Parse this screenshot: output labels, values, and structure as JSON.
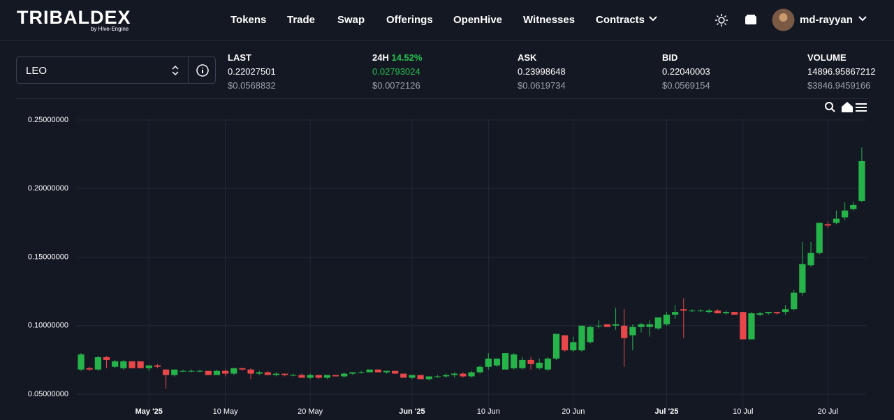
{
  "header": {
    "logo": "TRIBALDEX",
    "logo_sub": "by Hive-Engine",
    "nav": [
      "Tokens",
      "Trade",
      "Swap",
      "Offerings",
      "OpenHive",
      "Witnesses",
      "Contracts"
    ],
    "user": "md-rayyan"
  },
  "market": {
    "token": "LEO",
    "stats": [
      {
        "label": "LAST",
        "value": "0.22027501",
        "usd": "$0.0568832"
      },
      {
        "label": "24H",
        "change": "14.52%",
        "value": "0.02793024",
        "usd": "$0.0072126"
      },
      {
        "label": "ASK",
        "value": "0.23998648",
        "usd": "$0.0619734"
      },
      {
        "label": "BID",
        "value": "0.22040003",
        "usd": "$0.0569154"
      },
      {
        "label": "VOLUME",
        "value": "14896.95867212",
        "usd": "$3846.9459166"
      }
    ]
  },
  "chart_data": {
    "type": "candlestick",
    "up_color": "#26b34a",
    "down_color": "#e8474a",
    "grid": true,
    "categories": [
      "2025-04-23",
      "2025-04-24",
      "2025-04-25",
      "2025-04-26",
      "2025-04-27",
      "2025-04-28",
      "2025-04-29",
      "2025-04-30",
      "2025-05-01",
      "2025-05-02",
      "2025-05-03",
      "2025-05-04",
      "2025-05-05",
      "2025-05-06",
      "2025-05-07",
      "2025-05-08",
      "2025-05-09",
      "2025-05-10",
      "2025-05-11",
      "2025-05-12",
      "2025-05-13",
      "2025-05-14",
      "2025-05-15",
      "2025-05-16",
      "2025-05-17",
      "2025-05-18",
      "2025-05-19",
      "2025-05-20",
      "2025-05-21",
      "2025-05-22",
      "2025-05-23",
      "2025-05-24",
      "2025-05-25",
      "2025-05-26",
      "2025-05-27",
      "2025-05-28",
      "2025-05-29",
      "2025-05-30",
      "2025-05-31",
      "2025-06-01",
      "2025-06-02",
      "2025-06-03",
      "2025-06-04",
      "2025-06-05",
      "2025-06-06",
      "2025-06-07",
      "2025-06-08",
      "2025-06-09",
      "2025-06-10",
      "2025-06-11",
      "2025-06-12",
      "2025-06-13",
      "2025-06-14",
      "2025-06-15",
      "2025-06-16",
      "2025-06-17",
      "2025-06-18",
      "2025-06-19",
      "2025-06-20",
      "2025-06-21",
      "2025-06-22",
      "2025-06-23",
      "2025-06-24",
      "2025-06-25",
      "2025-06-26",
      "2025-06-27",
      "2025-06-28",
      "2025-06-29",
      "2025-06-30",
      "2025-07-01",
      "2025-07-02",
      "2025-07-03",
      "2025-07-04",
      "2025-07-05",
      "2025-07-06",
      "2025-07-07",
      "2025-07-08",
      "2025-07-09",
      "2025-07-10",
      "2025-07-11",
      "2025-07-12",
      "2025-07-13",
      "2025-07-14",
      "2025-07-15",
      "2025-07-16",
      "2025-07-17",
      "2025-07-18",
      "2025-07-19",
      "2025-07-20",
      "2025-07-21",
      "2025-07-22",
      "2025-07-23",
      "2025-07-24"
    ],
    "open": [
      0.068,
      0.069,
      0.068,
      0.077,
      0.07,
      0.069,
      0.074,
      0.074,
      0.069,
      0.071,
      0.068,
      0.064,
      0.067,
      0.067,
      0.067,
      0.067,
      0.064,
      0.067,
      0.065,
      0.069,
      0.068,
      0.065,
      0.066,
      0.064,
      0.065,
      0.064,
      0.064,
      0.062,
      0.064,
      0.062,
      0.064,
      0.063,
      0.065,
      0.066,
      0.066,
      0.068,
      0.066,
      0.067,
      0.065,
      0.062,
      0.064,
      0.061,
      0.063,
      0.063,
      0.064,
      0.065,
      0.063,
      0.066,
      0.07,
      0.071,
      0.068,
      0.069,
      0.069,
      0.075,
      0.069,
      0.068,
      0.076,
      0.093,
      0.082,
      0.082,
      0.088,
      0.1,
      0.101,
      0.1,
      0.1,
      0.093,
      0.099,
      0.099,
      0.098,
      0.101,
      0.108,
      0.112,
      0.111,
      0.111,
      0.11,
      0.111,
      0.109,
      0.11,
      0.11,
      0.09,
      0.108,
      0.109,
      0.11,
      0.11,
      0.112,
      0.124,
      0.144,
      0.153,
      0.174,
      0.175,
      0.179,
      0.185,
      0.191
    ],
    "high": [
      0.08,
      0.07,
      0.078,
      0.078,
      0.075,
      0.075,
      0.074,
      0.074,
      0.071,
      0.072,
      0.068,
      0.068,
      0.068,
      0.068,
      0.068,
      0.067,
      0.068,
      0.068,
      0.069,
      0.069,
      0.069,
      0.067,
      0.067,
      0.066,
      0.065,
      0.065,
      0.065,
      0.065,
      0.064,
      0.064,
      0.064,
      0.066,
      0.066,
      0.067,
      0.068,
      0.068,
      0.067,
      0.067,
      0.065,
      0.064,
      0.064,
      0.063,
      0.064,
      0.065,
      0.066,
      0.066,
      0.067,
      0.071,
      0.08,
      0.076,
      0.08,
      0.08,
      0.077,
      0.077,
      0.076,
      0.077,
      0.094,
      0.093,
      0.092,
      0.1,
      0.1,
      0.104,
      0.101,
      0.113,
      0.112,
      0.101,
      0.102,
      0.104,
      0.106,
      0.11,
      0.115,
      0.12,
      0.112,
      0.112,
      0.112,
      0.112,
      0.111,
      0.11,
      0.11,
      0.11,
      0.11,
      0.11,
      0.11,
      0.115,
      0.126,
      0.161,
      0.161,
      0.175,
      0.176,
      0.184,
      0.19,
      0.19,
      0.23
    ],
    "low": [
      0.067,
      0.067,
      0.067,
      0.069,
      0.069,
      0.068,
      0.069,
      0.069,
      0.067,
      0.069,
      0.054,
      0.063,
      0.066,
      0.066,
      0.066,
      0.064,
      0.064,
      0.063,
      0.064,
      0.067,
      0.061,
      0.064,
      0.064,
      0.063,
      0.063,
      0.063,
      0.062,
      0.061,
      0.061,
      0.061,
      0.063,
      0.062,
      0.064,
      0.065,
      0.066,
      0.066,
      0.065,
      0.065,
      0.062,
      0.061,
      0.061,
      0.06,
      0.062,
      0.062,
      0.062,
      0.062,
      0.062,
      0.065,
      0.068,
      0.07,
      0.068,
      0.068,
      0.068,
      0.068,
      0.068,
      0.067,
      0.075,
      0.081,
      0.081,
      0.081,
      0.087,
      0.098,
      0.099,
      0.097,
      0.07,
      0.082,
      0.095,
      0.092,
      0.097,
      0.1,
      0.105,
      0.091,
      0.11,
      0.11,
      0.109,
      0.109,
      0.108,
      0.108,
      0.09,
      0.09,
      0.107,
      0.108,
      0.108,
      0.108,
      0.111,
      0.122,
      0.143,
      0.152,
      0.171,
      0.174,
      0.177,
      0.184,
      0.19
    ],
    "close": [
      0.079,
      0.068,
      0.077,
      0.075,
      0.074,
      0.074,
      0.069,
      0.069,
      0.071,
      0.07,
      0.064,
      0.068,
      0.067,
      0.067,
      0.067,
      0.064,
      0.067,
      0.065,
      0.069,
      0.068,
      0.065,
      0.066,
      0.064,
      0.065,
      0.064,
      0.064,
      0.062,
      0.064,
      0.062,
      0.064,
      0.063,
      0.065,
      0.066,
      0.066,
      0.068,
      0.066,
      0.067,
      0.065,
      0.062,
      0.064,
      0.061,
      0.063,
      0.063,
      0.064,
      0.065,
      0.063,
      0.066,
      0.07,
      0.076,
      0.076,
      0.08,
      0.079,
      0.075,
      0.072,
      0.073,
      0.076,
      0.094,
      0.082,
      0.088,
      0.1,
      0.099,
      0.1,
      0.099,
      0.101,
      0.091,
      0.099,
      0.101,
      0.101,
      0.106,
      0.108,
      0.11,
      0.111,
      0.111,
      0.111,
      0.111,
      0.109,
      0.11,
      0.108,
      0.09,
      0.109,
      0.109,
      0.11,
      0.109,
      0.112,
      0.124,
      0.145,
      0.153,
      0.175,
      0.173,
      0.178,
      0.184,
      0.188,
      0.22
    ],
    "ylim": [
      0.0373,
      0.2612
    ],
    "yticks": [
      {
        "value": 0.05,
        "label": "0.05000000"
      },
      {
        "value": 0.1,
        "label": "0.10000000"
      },
      {
        "value": 0.15,
        "label": "0.15000000"
      },
      {
        "value": 0.2,
        "label": "0.20000000"
      },
      {
        "value": 0.25,
        "label": "0.25000000"
      }
    ],
    "xticks": [
      {
        "value": "2025-05-01",
        "label": "May '25"
      },
      {
        "value": "2025-05-10",
        "label": "10 May"
      },
      {
        "value": "2025-05-20",
        "label": "20 May"
      },
      {
        "value": "2025-06-01",
        "label": "Jun '25"
      },
      {
        "value": "2025-06-10",
        "label": "10 Jun"
      },
      {
        "value": "2025-06-20",
        "label": "20 Jun"
      },
      {
        "value": "2025-07-01",
        "label": "Jul '25"
      },
      {
        "value": "2025-07-10",
        "label": "10 Jul"
      },
      {
        "value": "2025-07-20",
        "label": "20 Jul"
      }
    ]
  }
}
